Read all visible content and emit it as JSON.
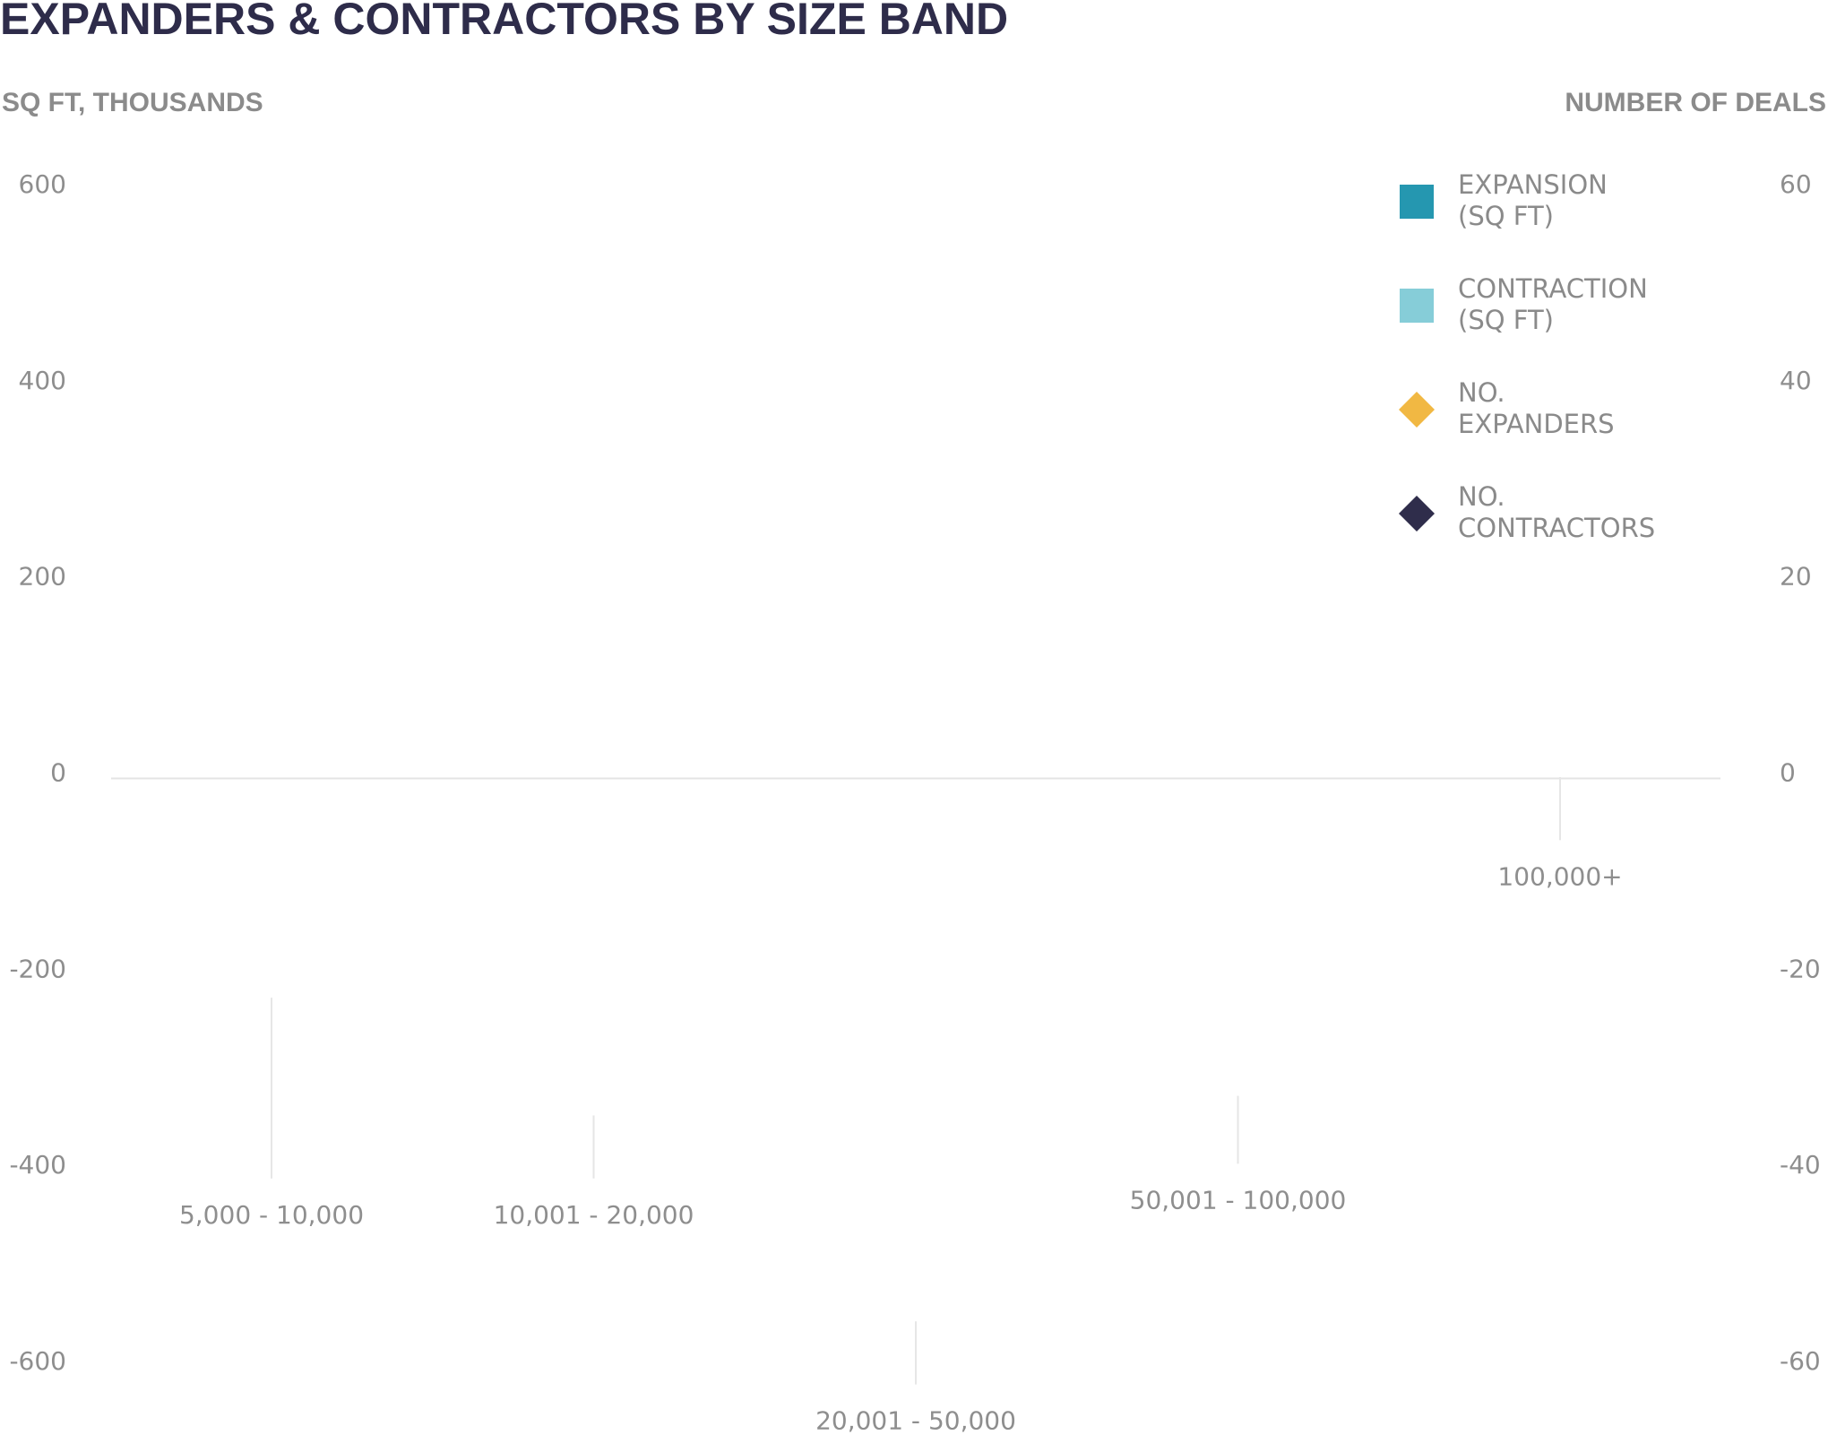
{
  "chart_data": {
    "type": "bar",
    "title": "EXPANDERS & CONTRACTORS BY SIZE BAND",
    "y_left_label": "SQ FT, THOUSANDS",
    "y_right_label": "NUMBER OF DEALS",
    "y_left_lim": [
      -600,
      600
    ],
    "y_right_lim": [
      -60,
      60
    ],
    "y_left_ticks": [
      600,
      400,
      200,
      0,
      -200,
      -400,
      -600
    ],
    "y_right_ticks": [
      60,
      40,
      20,
      0,
      -20,
      -40,
      -60
    ],
    "y_left_tick_labels": [
      "600",
      "400",
      "200",
      "0",
      "-200",
      "-400",
      "-600"
    ],
    "y_right_tick_labels": [
      "60",
      "40",
      "20",
      "0",
      "-20",
      "-40",
      "-60"
    ],
    "categories": [
      "5,000 - 10,000",
      "10,001 - 20,000",
      "20,001 - 50,000",
      "50,001 - 100,000",
      "100,000+"
    ],
    "category_label_anchor": [
      -460,
      -460,
      -670,
      -445,
      -115
    ],
    "category_leader_top": [
      -230,
      -350,
      -560,
      -330,
      -5
    ],
    "series": [
      {
        "name": "EXPANSION (SQ FT)",
        "axis": "left",
        "values": [
          null,
          null,
          null,
          null,
          null
        ]
      },
      {
        "name": "CONTRACTION (SQ FT)",
        "axis": "left",
        "values": [
          null,
          null,
          null,
          null,
          null
        ]
      },
      {
        "name": "NO. EXPANDERS",
        "axis": "right",
        "values": [
          null,
          null,
          null,
          null,
          null
        ]
      },
      {
        "name": "NO. CONTRACTORS",
        "axis": "right",
        "values": [
          null,
          null,
          null,
          null,
          null
        ]
      }
    ],
    "legend": {
      "placement": "top-right",
      "items": [
        {
          "line1": "EXPANSION",
          "line2": "(SQ FT)",
          "marker": "square",
          "color": "#2597b0"
        },
        {
          "line1": "CONTRACTION",
          "line2": "(SQ FT)",
          "marker": "square",
          "color": "#86cdd8"
        },
        {
          "line1": "NO.",
          "line2": "EXPANDERS",
          "marker": "diamond",
          "color": "#f1b843"
        },
        {
          "line1": "NO.",
          "line2": "CONTRACTORS",
          "marker": "diamond",
          "color": "#2f2d4b"
        }
      ]
    },
    "grid": false,
    "colors": {
      "title": "#2e2c4a",
      "axis_text": "#8e8e8e",
      "zero_line": "#e4e4e4",
      "leader_line": "#e6e6e6"
    }
  }
}
